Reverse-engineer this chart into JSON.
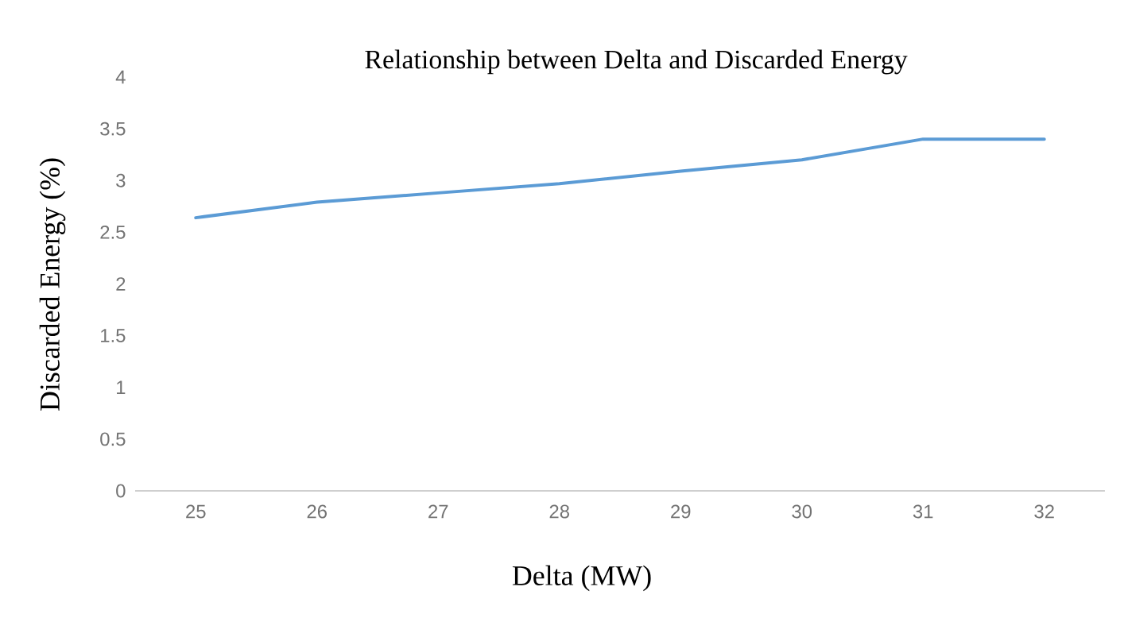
{
  "chart_data": {
    "type": "line",
    "title": "Relationship between Delta and Discarded Energy",
    "xlabel": "Delta (MW)",
    "ylabel": "Discarded Energy (%)",
    "categories": [
      "25",
      "26",
      "27",
      "28",
      "29",
      "30",
      "31",
      "32"
    ],
    "series": [
      {
        "color": "#5b9bd5",
        "values": [
          2.64,
          2.79,
          2.88,
          2.97,
          3.09,
          3.2,
          3.4,
          3.4
        ]
      }
    ],
    "ylim": [
      0,
      4
    ],
    "yticks": [
      0,
      0.5,
      1,
      1.5,
      2,
      2.5,
      3,
      3.5,
      4
    ]
  }
}
